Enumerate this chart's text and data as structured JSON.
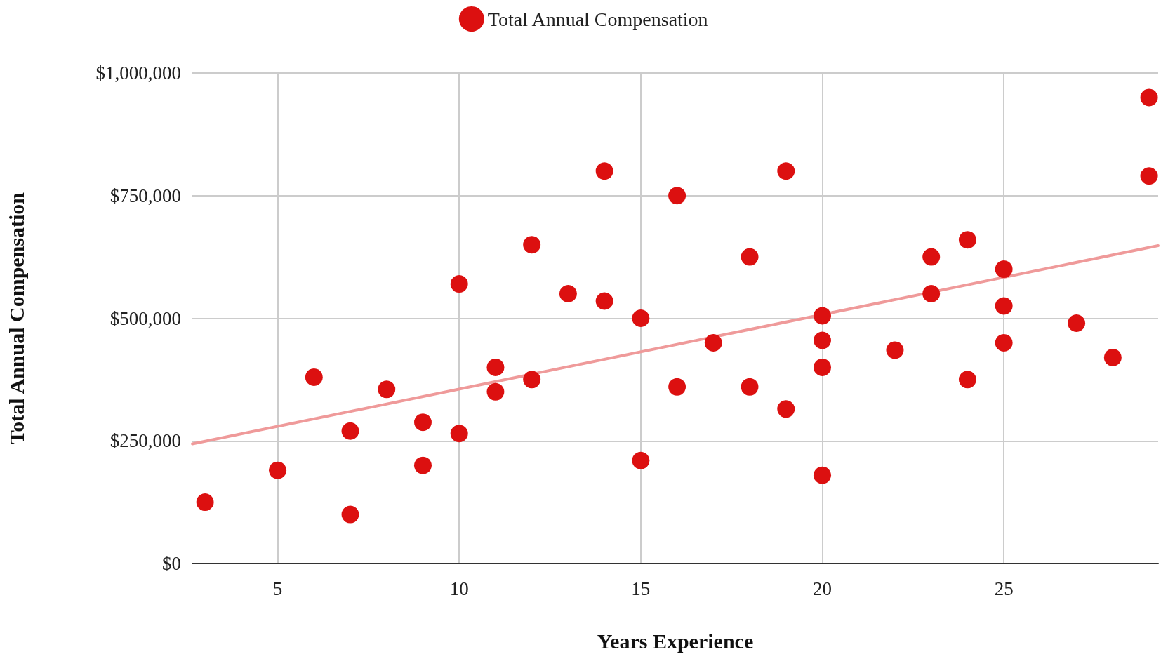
{
  "chart_data": {
    "type": "scatter",
    "xlabel": "Years Experience",
    "ylabel": "Total Annual Compensation",
    "xlim": [
      2.65,
      29.25
    ],
    "xticks": [
      5,
      10,
      15,
      20,
      25
    ],
    "ylim": [
      0,
      1000000
    ],
    "yticks": [
      {
        "value": 0,
        "label": "$0"
      },
      {
        "value": 250000,
        "label": "$250,000"
      },
      {
        "value": 500000,
        "label": "$500,000"
      },
      {
        "value": 750000,
        "label": "$750,000"
      },
      {
        "value": 1000000,
        "label": "$1,000,000"
      }
    ],
    "grid": true,
    "legend": "top",
    "series": [
      {
        "name": "Total Annual Compensation",
        "color": "#dc1010",
        "marker": "circle",
        "x": [
          3,
          5,
          6,
          7,
          7,
          8,
          9,
          9,
          10,
          10,
          11,
          11,
          12,
          12,
          13,
          14,
          14,
          15,
          15,
          16,
          16,
          17,
          18,
          18,
          19,
          19,
          20,
          20,
          20,
          20,
          22,
          23,
          23,
          24,
          24,
          25,
          25,
          25,
          27,
          28,
          29,
          29
        ],
        "values": [
          125000,
          190000,
          380000,
          270000,
          100000,
          355000,
          288000,
          200000,
          570000,
          265000,
          400000,
          350000,
          650000,
          375000,
          550000,
          800000,
          535000,
          500000,
          210000,
          750000,
          360000,
          450000,
          625000,
          360000,
          800000,
          315000,
          505000,
          455000,
          400000,
          180000,
          435000,
          625000,
          550000,
          660000,
          375000,
          600000,
          525000,
          450000,
          490000,
          420000,
          950000,
          790000
        ]
      },
      {
        "type": "line",
        "color": "#ef9a9a",
        "marker": "none",
        "x": [
          2.65,
          29.25
        ],
        "values": [
          244000,
          648000
        ]
      }
    ]
  }
}
